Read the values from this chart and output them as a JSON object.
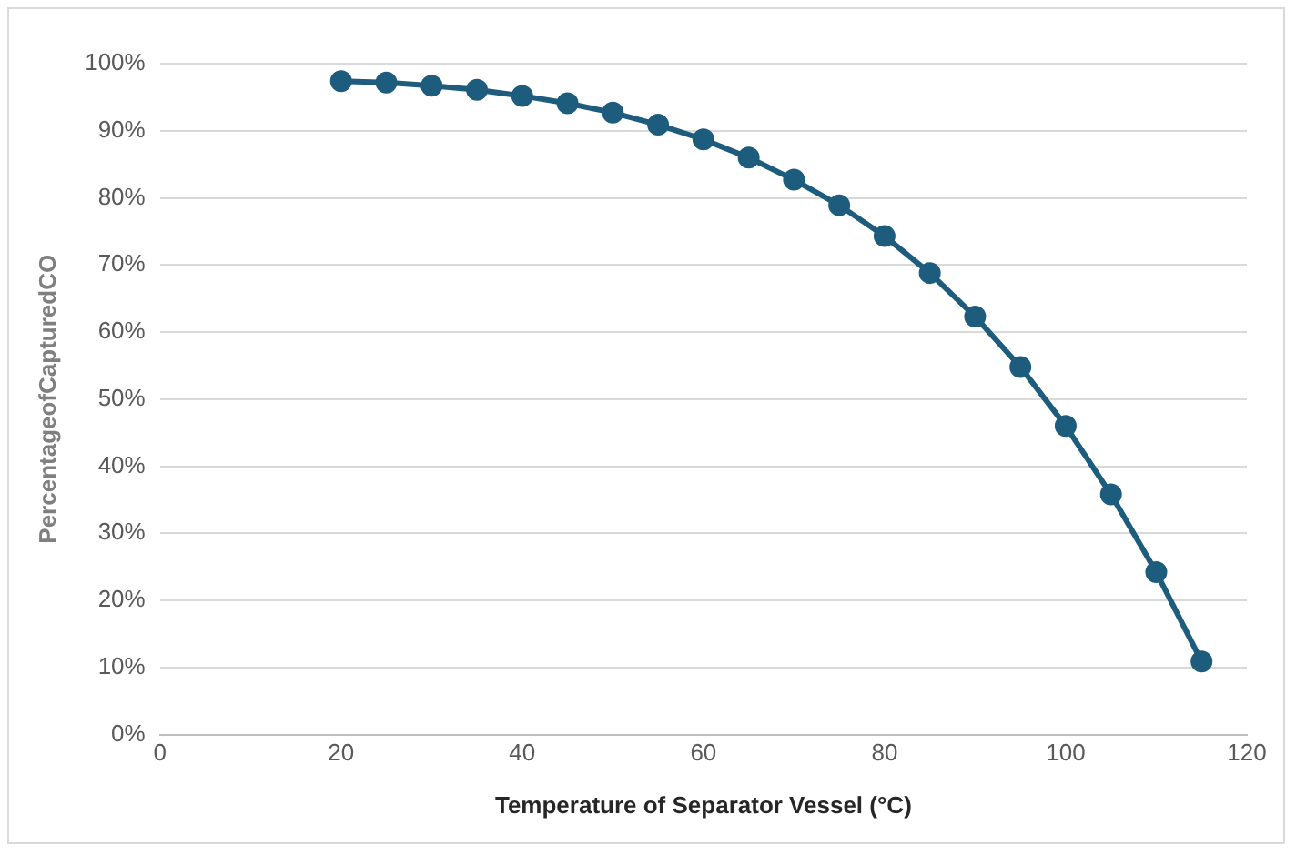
{
  "chart_data": {
    "type": "line",
    "xlabel": "Temperature of Separator Vessel (°C)",
    "ylabel": "PercentageofCapturedCO",
    "x": [
      20,
      25,
      30,
      35,
      40,
      45,
      50,
      55,
      60,
      65,
      70,
      75,
      80,
      85,
      90,
      95,
      100,
      105,
      110,
      115
    ],
    "series": [
      {
        "color": "#1d5c7c",
        "values": [
          97.4,
          97.2,
          96.7,
          96.1,
          95.2,
          94.1,
          92.7,
          90.9,
          88.7,
          86.0,
          82.7,
          78.9,
          74.3,
          68.8,
          62.3,
          54.8,
          46.0,
          35.8,
          24.2,
          10.9
        ]
      }
    ],
    "xlim": [
      0,
      120
    ],
    "xticks": [
      0,
      20,
      40,
      60,
      80,
      100,
      120
    ],
    "ylim": [
      0,
      100
    ],
    "yticks": [
      {
        "value": 0,
        "label": "0%"
      },
      {
        "value": 10,
        "label": "10%"
      },
      {
        "value": 20,
        "label": "20%"
      },
      {
        "value": 30,
        "label": "30%"
      },
      {
        "value": 40,
        "label": "40%"
      },
      {
        "value": 50,
        "label": "50%"
      },
      {
        "value": 60,
        "label": "60%"
      },
      {
        "value": 70,
        "label": "70%"
      },
      {
        "value": 80,
        "label": "80%"
      },
      {
        "value": 90,
        "label": "90%"
      },
      {
        "value": 100,
        "label": "100%"
      }
    ],
    "grid": "y",
    "legend": false,
    "marker": "circle",
    "line_style": "solid"
  }
}
